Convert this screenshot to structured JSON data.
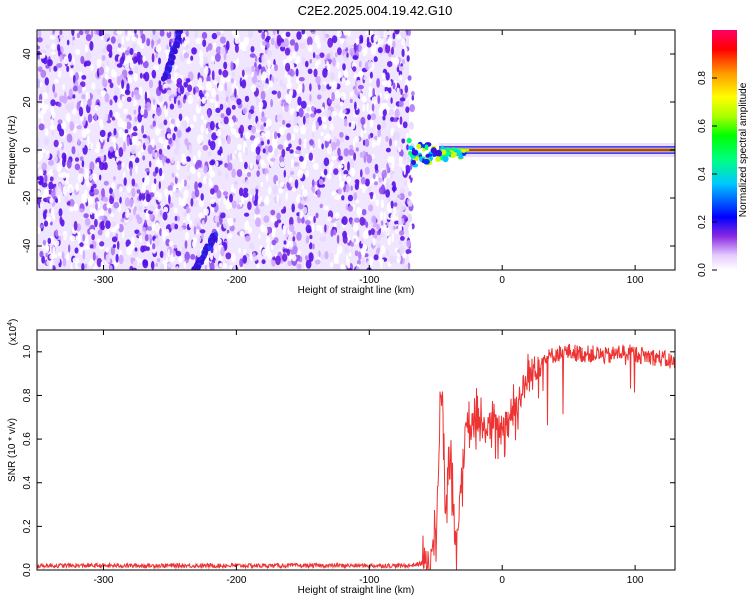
{
  "title": "C2E2.2025.004.19.42.G10",
  "chart_data": [
    {
      "type": "heatmap",
      "title": "",
      "xlabel": "Height of straight line (km)",
      "ylabel": "Frequency (Hz)",
      "xlim": [
        -350,
        130
      ],
      "ylim": [
        -50,
        50
      ],
      "xticks": [
        -300,
        -200,
        -100,
        0,
        100
      ],
      "xtick_labels": [
        "-300",
        "-200",
        "-100",
        "0",
        "100"
      ],
      "yticks": [
        -40,
        -20,
        0,
        20,
        40
      ],
      "ytick_labels": [
        "-40",
        "-20",
        "0",
        "20",
        "40"
      ],
      "noise_region_x": [
        -350,
        -70
      ],
      "signal_line": {
        "x": [
          -70,
          130
        ],
        "frequency": 0,
        "amplitude": 0.95
      },
      "colorbar": {
        "label": "Normalized spectral amplitude",
        "range": [
          0.0,
          1.0
        ],
        "ticks": [
          0.0,
          0.2,
          0.4,
          0.6,
          0.8
        ],
        "tick_labels": [
          "0.0",
          "0.2",
          "0.4",
          "0.6",
          "0.8"
        ]
      },
      "grid": false
    },
    {
      "type": "line",
      "title": "",
      "xlabel": "Height of straight line (km)",
      "ylabel": "SNR (10 * v/v)",
      "y_multiplier": "(x10",
      "y_multiplier_exp": "4",
      "y_multiplier_close": ")",
      "xlim": [
        -350,
        130
      ],
      "ylim": [
        0,
        1.1
      ],
      "xticks": [
        -300,
        -200,
        -100,
        0,
        100
      ],
      "xtick_labels": [
        "-300",
        "-200",
        "-100",
        "0",
        "100"
      ],
      "yticks": [
        0.0,
        0.2,
        0.4,
        0.6,
        0.8,
        1.0
      ],
      "ytick_labels": [
        "0.0",
        "0.2",
        "0.4",
        "0.6",
        "0.8",
        "1.0"
      ],
      "series_color": "#ee3333",
      "series": [
        {
          "x": [
            -350,
            -300,
            -250,
            -200,
            -150,
            -100,
            -70,
            -60,
            -55,
            -50,
            -48,
            -47,
            -45,
            -44,
            -42,
            -40,
            -38,
            -36,
            -34,
            -32,
            -30,
            -28,
            -25,
            -22,
            -20,
            -15,
            -10,
            -5,
            0,
            5,
            10,
            15,
            20,
            25,
            30,
            40,
            50,
            60,
            70,
            80,
            90,
            100,
            110,
            120,
            130
          ],
          "values": [
            0.02,
            0.02,
            0.02,
            0.02,
            0.02,
            0.02,
            0.02,
            0.03,
            0.06,
            0.12,
            0.45,
            0.75,
            0.8,
            0.5,
            0.3,
            0.55,
            0.45,
            0.2,
            0.12,
            0.35,
            0.45,
            0.6,
            0.62,
            0.66,
            0.68,
            0.64,
            0.66,
            0.65,
            0.66,
            0.7,
            0.75,
            0.82,
            0.88,
            0.93,
            0.96,
            0.99,
            1.0,
            0.99,
            0.99,
            0.98,
            1.0,
            0.99,
            0.98,
            0.97,
            0.95
          ]
        }
      ],
      "grid": false
    }
  ]
}
